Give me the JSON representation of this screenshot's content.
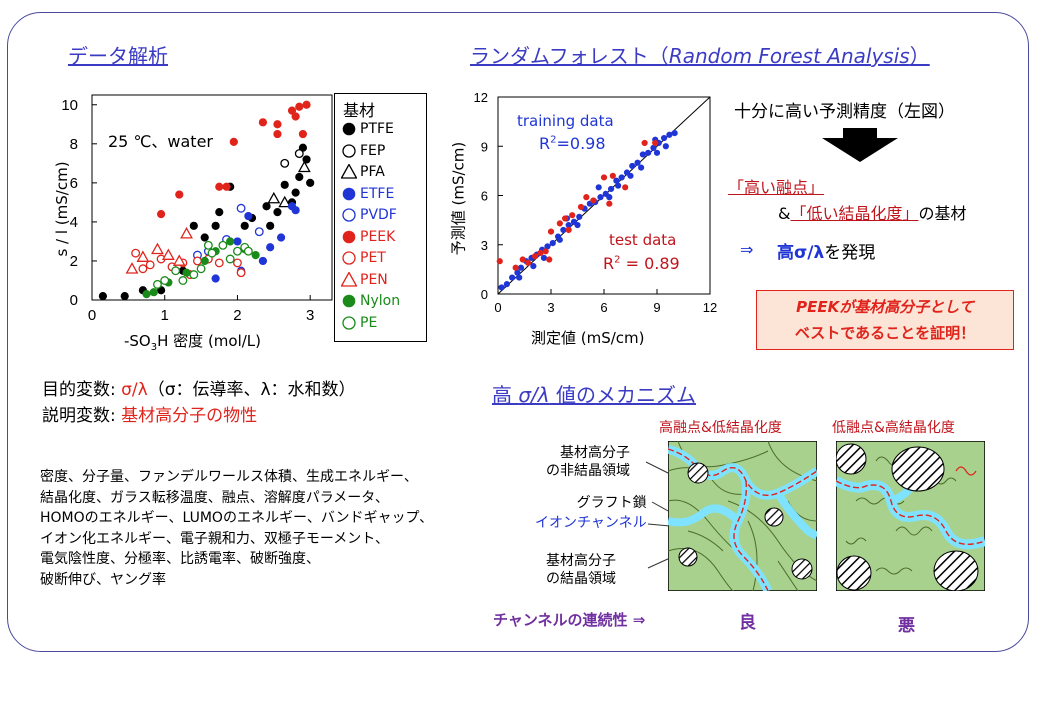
{
  "left_section": {
    "title": "データ解析",
    "annotation": "25 ℃、water",
    "ylabel": "s / l (mS/cm)",
    "xlabel_prefix": "-SO",
    "xlabel_sub": "3",
    "xlabel_suffix": "H 密度 (mol/L)",
    "legend_title": "基材",
    "legend": [
      {
        "label": "PTFE",
        "symbol": "filled-circle",
        "color": "#000000"
      },
      {
        "label": "FEP",
        "symbol": "open-circle",
        "color": "#000000"
      },
      {
        "label": "PFA",
        "symbol": "open-triangle",
        "color": "#000000"
      },
      {
        "label": "ETFE",
        "symbol": "filled-circle",
        "color": "#1f35d6"
      },
      {
        "label": "PVDF",
        "symbol": "open-circle",
        "color": "#1f35d6"
      },
      {
        "label": "PEEK",
        "symbol": "filled-circle",
        "color": "#e0241c"
      },
      {
        "label": "PET",
        "symbol": "open-circle",
        "color": "#e0241c"
      },
      {
        "label": "PEN",
        "symbol": "open-triangle",
        "color": "#e0241c"
      },
      {
        "label": "Nylon",
        "symbol": "filled-circle",
        "color": "#1a8a1a"
      },
      {
        "label": "PE",
        "symbol": "open-circle",
        "color": "#1a8a1a"
      }
    ],
    "objective_label": "目的変数: ",
    "objective_value": "σ/λ",
    "objective_note": "（σ：伝導率、λ：水和数）",
    "explanatory_label": "説明変数: ",
    "explanatory_value": "基材高分子の物性",
    "properties": [
      "密度、分子量、ファンデルワールス体積、生成エネルギー、",
      "結晶化度、ガラス転移温度、融点、溶解度パラメータ、",
      "HOMOのエネルギー、LUMOのエネルギー、バンドギャップ、",
      "イオン化エネルギー、電子親和力、双極子モーメント、",
      "電気陰性度、分極率、比誘電率、破断強度、",
      "破断伸び、ヤング率"
    ]
  },
  "rf_section": {
    "title": "ランダムフォレスト（",
    "title_italic": "Random Forest Analysis",
    "title_end": "）",
    "ylabel": "予測値 (mS/cm)",
    "xlabel": "測定値 (mS/cm)",
    "training_label": "training data",
    "training_r2_prefix": "R",
    "training_r2_sup": "2",
    "training_r2_value": "=0.98",
    "test_label": "test data",
    "test_r2_prefix": "R",
    "test_r2_sup": "2",
    "test_r2_value": " = 0.89",
    "accuracy_text": "十分に高い予測精度（左図）",
    "high_mp": "「高い融点」",
    "amp": "&",
    "low_cryst": "「低い結晶化度」",
    "substrate": "の基材",
    "arrow": "⇒",
    "discovery_bold": "高σ/λ",
    "discovery_rest": "を発現",
    "callout_line1": "PEEKが基材高分子として",
    "callout_line2": "ベストであることを証明！"
  },
  "mech_section": {
    "title_prefix": "高 ",
    "title_italic": "σ/λ",
    "title_suffix": " 値のメカニズム",
    "label_amorphous_1": "基材高分子",
    "label_amorphous_2": "の非結晶領域",
    "label_graft": "グラフト鎖",
    "label_channel": "イオンチャンネル",
    "label_crystal_1": "基材高分子",
    "label_crystal_2": "の結晶領域",
    "header_left": "高融点&低結晶化度",
    "header_right": "低融点&高結晶化度",
    "continuity": "チャンネルの連続性 ⇒",
    "good": "良",
    "bad": "悪"
  },
  "chart_data": [
    {
      "type": "scatter",
      "xlabel": "-SO3H 密度 (mol/L)",
      "ylabel": "s / l (mS/cm)",
      "xlim": [
        0,
        3.3
      ],
      "ylim": [
        0,
        10.5
      ],
      "xticks": [
        0,
        1,
        2,
        3
      ],
      "yticks": [
        0,
        2,
        4,
        6,
        8,
        10
      ],
      "series": [
        {
          "name": "PTFE",
          "color": "#000000",
          "marker": "filled-circle",
          "points": [
            [
              0.15,
              0.2
            ],
            [
              0.45,
              0.2
            ],
            [
              0.7,
              0.5
            ],
            [
              0.95,
              0.5
            ],
            [
              1.25,
              1.5
            ],
            [
              1.4,
              3.8
            ],
            [
              1.55,
              3.2
            ],
            [
              1.7,
              3.8
            ],
            [
              1.75,
              4.5
            ],
            [
              1.9,
              5.8
            ],
            [
              2.1,
              3.8
            ],
            [
              2.2,
              4.2
            ],
            [
              2.45,
              3.8
            ],
            [
              2.55,
              4.5
            ],
            [
              2.75,
              5.0
            ],
            [
              2.85,
              6.3
            ],
            [
              2.9,
              7.8
            ],
            [
              2.95,
              7.2
            ],
            [
              3.0,
              6.0
            ],
            [
              2.8,
              5.5
            ],
            [
              2.65,
              5.9
            ],
            [
              2.4,
              4.8
            ]
          ]
        },
        {
          "name": "FEP",
          "color": "#000000",
          "marker": "open-circle",
          "points": [
            [
              2.65,
              7.0
            ],
            [
              2.85,
              7.5
            ]
          ]
        },
        {
          "name": "PFA",
          "color": "#000000",
          "marker": "open-triangle",
          "points": [
            [
              2.5,
              5.2
            ],
            [
              2.65,
              5.0
            ],
            [
              2.92,
              6.8
            ]
          ]
        },
        {
          "name": "ETFE",
          "color": "#1f35d6",
          "marker": "filled-circle",
          "points": [
            [
              1.7,
              1.1
            ],
            [
              2.05,
              1.5
            ],
            [
              2.35,
              2.0
            ],
            [
              2.45,
              2.7
            ],
            [
              2.6,
              3.2
            ],
            [
              2.75,
              4.8
            ],
            [
              2.8,
              4.6
            ],
            [
              2.15,
              4.3
            ],
            [
              2.0,
              3.0
            ]
          ]
        },
        {
          "name": "PVDF",
          "color": "#1f35d6",
          "marker": "open-circle",
          "points": [
            [
              1.45,
              2.3
            ],
            [
              1.85,
              3.1
            ],
            [
              2.05,
              4.7
            ],
            [
              2.3,
              3.5
            ],
            [
              1.6,
              2.5
            ]
          ]
        },
        {
          "name": "PEEK",
          "color": "#e0241c",
          "marker": "filled-circle",
          "points": [
            [
              0.95,
              4.4
            ],
            [
              1.2,
              5.4
            ],
            [
              1.75,
              5.8
            ],
            [
              1.85,
              5.8
            ],
            [
              1.95,
              8.1
            ],
            [
              2.35,
              9.1
            ],
            [
              2.55,
              9.0
            ],
            [
              2.75,
              9.7
            ],
            [
              2.85,
              9.9
            ],
            [
              2.95,
              10.0
            ],
            [
              2.9,
              8.5
            ],
            [
              2.55,
              8.5
            ],
            [
              2.8,
              9.4
            ]
          ]
        },
        {
          "name": "PET",
          "color": "#e0241c",
          "marker": "open-circle",
          "points": [
            [
              0.6,
              2.4
            ],
            [
              0.8,
              1.8
            ],
            [
              0.95,
              2.1
            ],
            [
              1.1,
              1.7
            ],
            [
              1.25,
              1.9
            ],
            [
              1.45,
              2.0
            ],
            [
              1.6,
              2.1
            ],
            [
              1.75,
              1.9
            ],
            [
              2.0,
              1.9
            ],
            [
              2.05,
              1.4
            ],
            [
              0.7,
              1.6
            ],
            [
              1.35,
              1.3
            ]
          ]
        },
        {
          "name": "PEN",
          "color": "#e0241c",
          "marker": "open-triangle",
          "points": [
            [
              0.55,
              1.6
            ],
            [
              0.7,
              2.2
            ],
            [
              0.9,
              2.6
            ],
            [
              1.2,
              2.0
            ],
            [
              1.3,
              3.4
            ],
            [
              1.05,
              2.3
            ]
          ]
        },
        {
          "name": "Nylon",
          "color": "#1a8a1a",
          "marker": "filled-circle",
          "points": [
            [
              0.75,
              0.3
            ],
            [
              0.85,
              0.4
            ],
            [
              1.05,
              0.9
            ],
            [
              1.3,
              1.4
            ],
            [
              1.7,
              2.5
            ],
            [
              1.9,
              3.0
            ],
            [
              2.1,
              2.6
            ],
            [
              2.25,
              2.3
            ],
            [
              1.55,
              2.0
            ]
          ]
        },
        {
          "name": "PE",
          "color": "#1a8a1a",
          "marker": "open-circle",
          "points": [
            [
              0.9,
              0.8
            ],
            [
              1.0,
              1.0
            ],
            [
              1.15,
              1.5
            ],
            [
              1.4,
              1.3
            ],
            [
              1.5,
              1.6
            ],
            [
              1.65,
              2.4
            ],
            [
              1.8,
              2.8
            ],
            [
              2.0,
              2.5
            ],
            [
              2.1,
              2.7
            ],
            [
              1.25,
              1.0
            ],
            [
              1.9,
              2.1
            ],
            [
              2.15,
              2.5
            ],
            [
              1.6,
              2.8
            ]
          ]
        }
      ]
    },
    {
      "type": "scatter",
      "xlabel": "測定値 (mS/cm)",
      "ylabel": "予測値 (mS/cm)",
      "xlim": [
        0,
        12
      ],
      "ylim": [
        0,
        12
      ],
      "xticks": [
        0,
        3,
        6,
        9,
        12
      ],
      "yticks": [
        0,
        3,
        6,
        9,
        12
      ],
      "series": [
        {
          "name": "training data",
          "color": "#1f35d6",
          "marker": "filled-circle",
          "points": [
            [
              0.2,
              0.4
            ],
            [
              0.5,
              0.6
            ],
            [
              0.8,
              1.0
            ],
            [
              1.1,
              1.3
            ],
            [
              1.3,
              1.6
            ],
            [
              1.6,
              2.0
            ],
            [
              1.9,
              2.2
            ],
            [
              2.2,
              2.4
            ],
            [
              2.5,
              2.7
            ],
            [
              2.8,
              2.9
            ],
            [
              3.1,
              3.1
            ],
            [
              3.4,
              3.5
            ],
            [
              3.7,
              3.9
            ],
            [
              4.0,
              4.2
            ],
            [
              4.3,
              4.4
            ],
            [
              4.6,
              4.7
            ],
            [
              4.9,
              5.2
            ],
            [
              5.2,
              5.5
            ],
            [
              5.5,
              5.6
            ],
            [
              5.8,
              5.9
            ],
            [
              6.1,
              6.1
            ],
            [
              6.4,
              6.4
            ],
            [
              6.7,
              6.9
            ],
            [
              7.0,
              7.1
            ],
            [
              7.3,
              7.4
            ],
            [
              7.6,
              7.8
            ],
            [
              7.9,
              8.0
            ],
            [
              8.2,
              8.5
            ],
            [
              8.5,
              8.6
            ],
            [
              8.8,
              8.9
            ],
            [
              9.1,
              9.2
            ],
            [
              9.4,
              9.5
            ],
            [
              9.7,
              9.7
            ],
            [
              10.0,
              9.8
            ],
            [
              9.0,
              8.6
            ],
            [
              9.5,
              9.0
            ],
            [
              8.9,
              9.4
            ],
            [
              5.7,
              6.5
            ],
            [
              6.8,
              6.6
            ],
            [
              3.5,
              3.3
            ],
            [
              2.0,
              1.7
            ],
            [
              1.2,
              1.0
            ],
            [
              7.5,
              7.2
            ],
            [
              8.1,
              7.7
            ],
            [
              4.5,
              4.2
            ],
            [
              3.9,
              4.6
            ],
            [
              6.3,
              5.9
            ],
            [
              2.6,
              2.2
            ]
          ]
        },
        {
          "name": "test data",
          "color": "#e0241c",
          "marker": "filled-circle",
          "points": [
            [
              0.1,
              2.0
            ],
            [
              1.4,
              2.1
            ],
            [
              1.7,
              1.9
            ],
            [
              2.1,
              2.3
            ],
            [
              2.4,
              2.5
            ],
            [
              2.7,
              2.6
            ],
            [
              3.0,
              3.8
            ],
            [
              3.5,
              4.3
            ],
            [
              3.8,
              4.6
            ],
            [
              4.2,
              4.8
            ],
            [
              4.7,
              5.3
            ],
            [
              5.0,
              5.9
            ],
            [
              5.4,
              5.7
            ],
            [
              6.0,
              7.1
            ],
            [
              6.5,
              7.2
            ],
            [
              8.3,
              9.2
            ],
            [
              8.9,
              9.2
            ],
            [
              6.3,
              5.5
            ],
            [
              7.2,
              6.5
            ],
            [
              1.0,
              1.6
            ],
            [
              2.9,
              2.1
            ],
            [
              4.0,
              3.9
            ]
          ]
        }
      ]
    }
  ]
}
